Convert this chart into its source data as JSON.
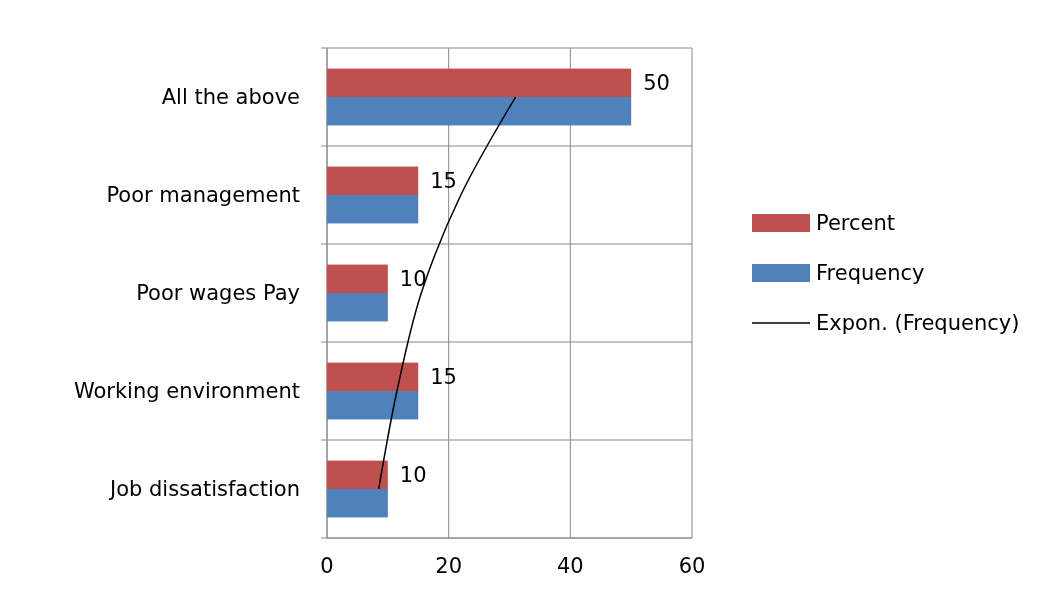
{
  "chart_data": {
    "type": "bar",
    "orientation": "horizontal",
    "categories": [
      "All the above",
      "Poor management",
      "Poor wages Pay",
      "Working environment",
      "Job dissatisfaction"
    ],
    "series": [
      {
        "name": "Percent",
        "color": "#c0504d",
        "values": [
          50,
          15,
          10,
          15,
          10
        ],
        "value_labels": [
          "50",
          "15",
          "10",
          "15",
          "10"
        ]
      },
      {
        "name": "Frequency",
        "color": "#4f81bd",
        "values": [
          50,
          15,
          10,
          15,
          10
        ]
      },
      {
        "name": "Expon. (Frequency)",
        "type": "line",
        "color": "#000000",
        "values": [
          31,
          22,
          15.5,
          11.5,
          8.5
        ],
        "marker": "none",
        "line_style": "solid"
      }
    ],
    "xlim": [
      0,
      60
    ],
    "xticks": [
      0,
      20,
      40,
      60
    ],
    "grid": true,
    "legend": "right"
  }
}
